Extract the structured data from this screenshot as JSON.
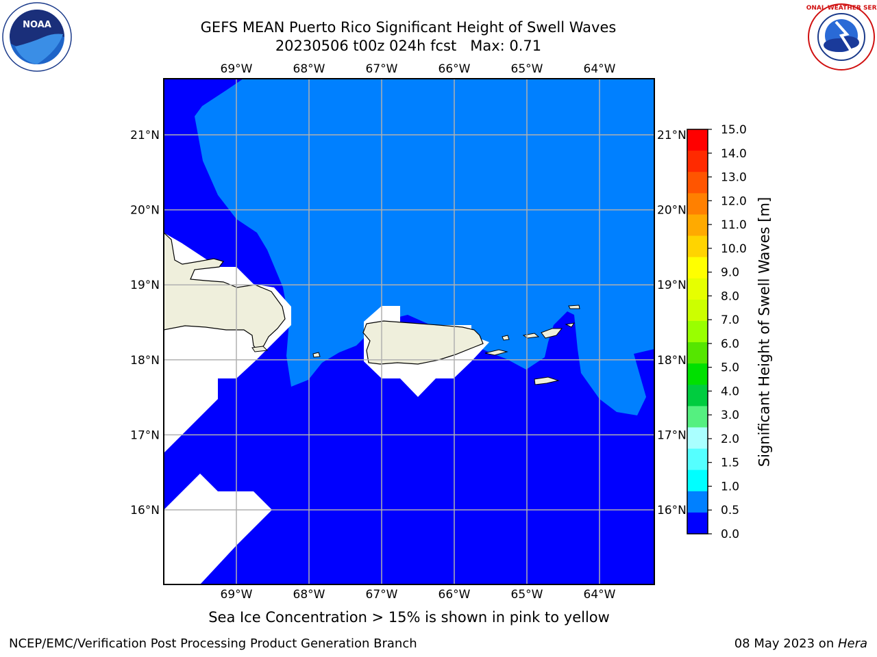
{
  "header": {
    "title_line1": "GEFS MEAN Puerto Rico Significant Height of Swell Waves",
    "title_line2": "20230506 t00z 024h fcst   Max: 0.71"
  },
  "map": {
    "lon_labels": [
      "69°W",
      "68°W",
      "67°W",
      "66°W",
      "65°W",
      "64°W"
    ],
    "lat_labels": [
      "21°N",
      "20°N",
      "19°N",
      "18°N",
      "17°N",
      "16°N"
    ],
    "lon_values": [
      -69,
      -68,
      -67,
      -66,
      -65,
      -64
    ],
    "lat_values": [
      21,
      20,
      19,
      18,
      17,
      16
    ],
    "colors": {
      "sea_low": "#0000ff",
      "sea_mid": "#0080ff",
      "land": "#efefdc",
      "nodata": "#ffffff",
      "grid": "#b0b0b0"
    }
  },
  "colorbar": {
    "title": "Significant Height of Swell Waves [m]",
    "ticks": [
      "15.0",
      "14.0",
      "13.0",
      "12.0",
      "11.0",
      "10.0",
      "9.0",
      "8.0",
      "7.0",
      "6.0",
      "5.0",
      "4.0",
      "3.0",
      "2.0",
      "1.5",
      "1.0",
      "0.5",
      "0.0"
    ],
    "colors": [
      "#ff0000",
      "#ff2a00",
      "#ff5500",
      "#ff8000",
      "#ffaa00",
      "#ffd400",
      "#ffff00",
      "#e6ff00",
      "#ccff00",
      "#99ff00",
      "#55e600",
      "#00e000",
      "#00cc3f",
      "#55f080",
      "#aaffff",
      "#55ffff",
      "#00ffff",
      "#0080ff",
      "#0000ff"
    ]
  },
  "note": "Sea Ice Concentration > 15% is shown in pink to yellow",
  "footer": {
    "left": "NCEP/EMC/Verification Post Processing Product Generation Branch",
    "right_date": "08 May 2023 on ",
    "right_host": "Hera"
  },
  "logos": {
    "noaa_text": "NOAA",
    "nws_text": "NATIONAL WEATHER SERVICE"
  }
}
